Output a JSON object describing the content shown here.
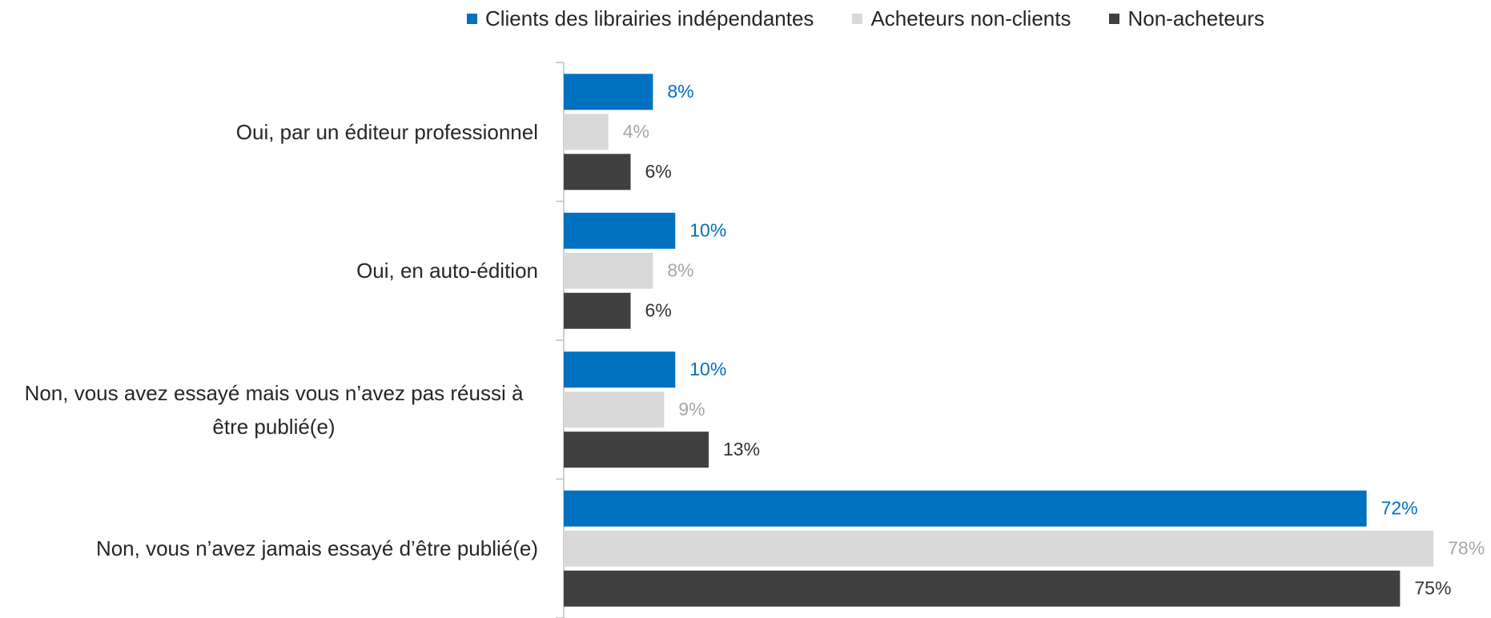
{
  "chart_data": {
    "type": "bar",
    "orientation": "horizontal",
    "categories": [
      "Oui, par un éditeur professionnel",
      "Oui, en auto-édition",
      "Non, vous avez essayé mais vous n’avez pas réussi à être publié(e)",
      "Non, vous n’avez jamais essayé d’être publié(e)"
    ],
    "series": [
      {
        "name": "Clients des librairies indépendantes",
        "color": "#0070c0",
        "label_color": "#0070c0",
        "values": [
          8,
          10,
          10,
          72
        ],
        "value_labels": [
          "8%",
          "10%",
          "10%",
          "72%"
        ]
      },
      {
        "name": "Acheteurs non-clients",
        "color": "#d9d9d9",
        "label_color": "#a6a6a6",
        "values": [
          4,
          8,
          9,
          78
        ],
        "value_labels": [
          "4%",
          "8%",
          "9%",
          "78%"
        ]
      },
      {
        "name": "Non-acheteurs",
        "color": "#404040",
        "label_color": "#333333",
        "values": [
          6,
          6,
          13,
          75
        ],
        "value_labels": [
          "6%",
          "6%",
          "13%",
          "75%"
        ]
      }
    ],
    "xlim": [
      0,
      80
    ],
    "legend": "top"
  }
}
